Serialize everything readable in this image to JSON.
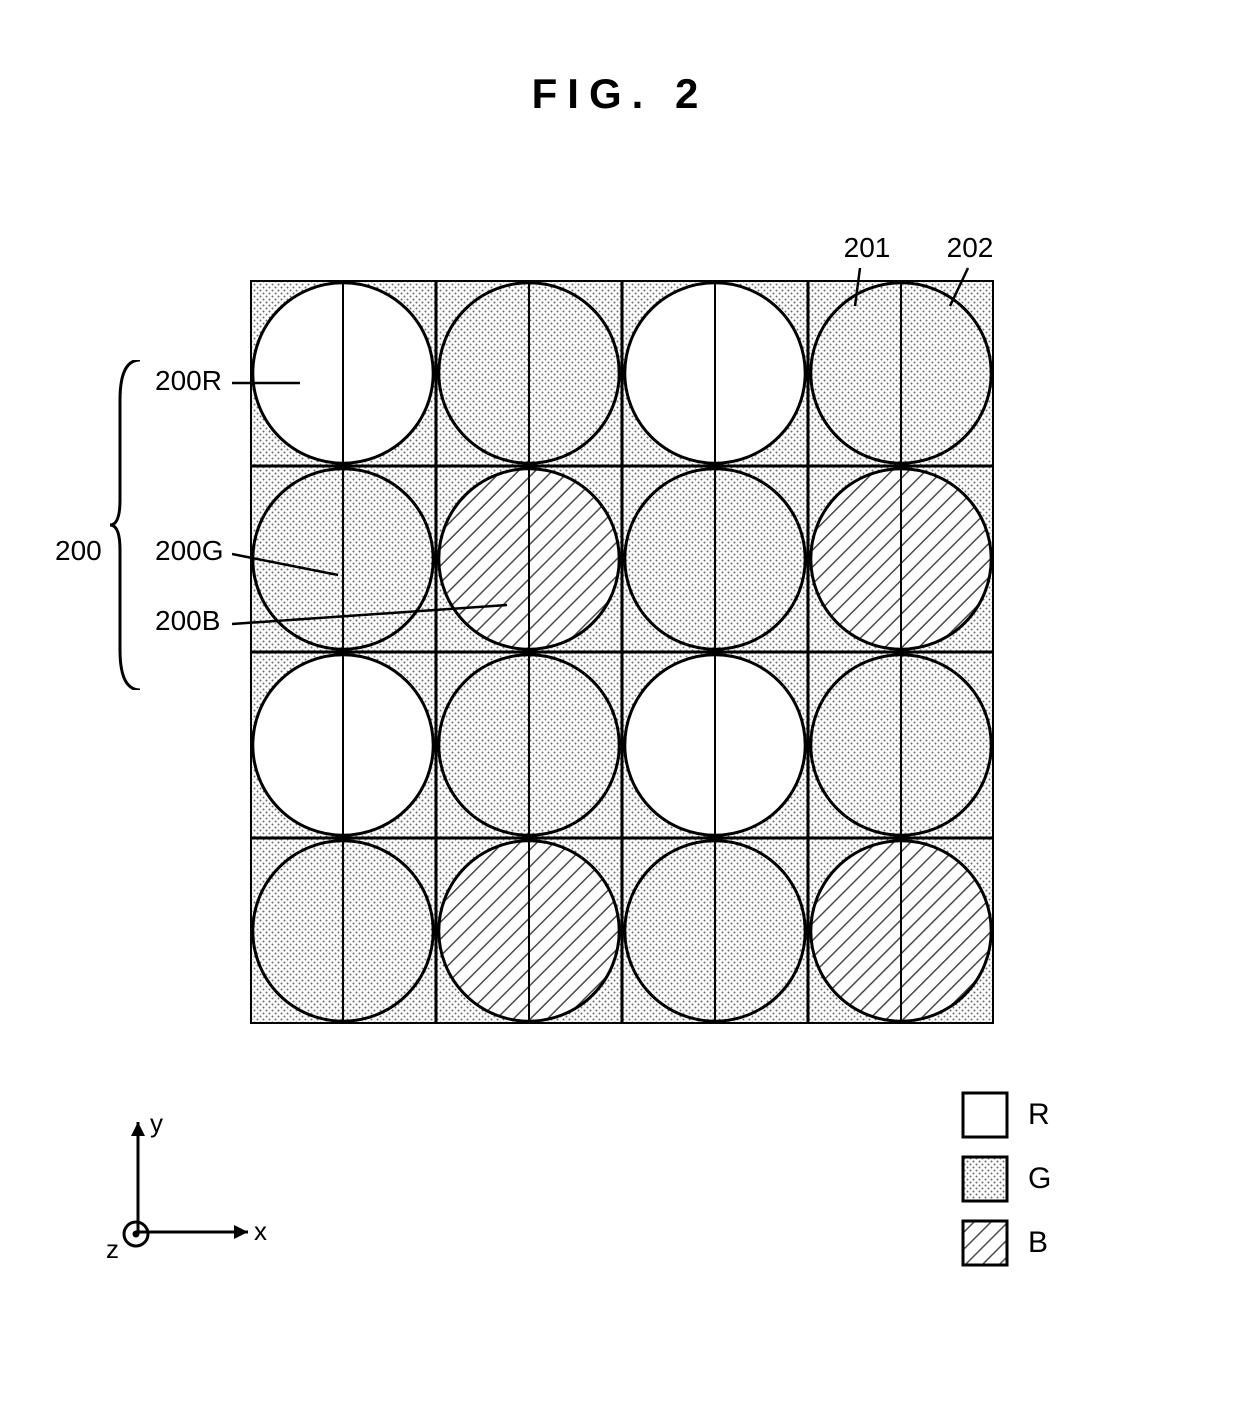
{
  "title": "FIG. 2",
  "array": {
    "rows": 4,
    "cols": 4,
    "cell_size": 186,
    "border_width": 3,
    "border_color": "#000000",
    "circle_radius_ratio": 0.485,
    "stroke_width": 3,
    "pattern_map": [
      [
        "R",
        "G",
        "R",
        "G"
      ],
      [
        "G",
        "B",
        "G",
        "B"
      ],
      [
        "R",
        "G",
        "R",
        "G"
      ],
      [
        "G",
        "B",
        "G",
        "B"
      ]
    ],
    "fills": {
      "R": {
        "type": "none"
      },
      "G": {
        "type": "dots",
        "color": "#6a6a6a",
        "background": "#ffffff",
        "radius": 1.0,
        "spacing": 6
      },
      "B": {
        "type": "hatch",
        "color": "#4a4a4a",
        "background": "#ffffff",
        "stroke_width": 3,
        "spacing": 12,
        "angle": 45
      }
    },
    "square_background_key": "G",
    "divider_per_circle": true
  },
  "annotations": {
    "group_label": "200",
    "items": [
      {
        "key": "R",
        "label": "200R"
      },
      {
        "key": "G",
        "label": "200G"
      },
      {
        "key": "B",
        "label": "200B"
      }
    ],
    "top_labels": {
      "left_half": "201",
      "right_half": "202"
    }
  },
  "legend": {
    "items": [
      {
        "key": "R",
        "label": "R"
      },
      {
        "key": "G",
        "label": "G"
      },
      {
        "key": "B",
        "label": "B"
      }
    ],
    "swatch_size": 44,
    "swatch_border": 3
  },
  "axes": {
    "x": "x",
    "y": "y",
    "z": "z",
    "arrow_len": 110,
    "stroke_width": 3,
    "color": "#000000"
  }
}
